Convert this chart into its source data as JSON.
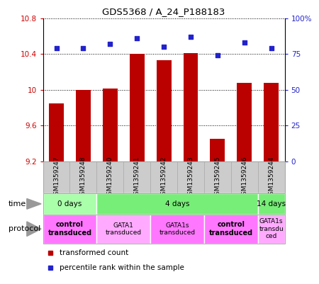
{
  "title": "GDS5368 / A_24_P188183",
  "samples": [
    "GSM1359247",
    "GSM1359248",
    "GSM1359240",
    "GSM1359241",
    "GSM1359242",
    "GSM1359243",
    "GSM1359245",
    "GSM1359246",
    "GSM1359244"
  ],
  "transformed_count": [
    9.85,
    10.0,
    10.01,
    10.4,
    10.33,
    10.41,
    9.45,
    10.08,
    10.08
  ],
  "percentile_rank": [
    79,
    79,
    82,
    86,
    80,
    87,
    74,
    83,
    79
  ],
  "ylim_left": [
    9.2,
    10.8
  ],
  "ylim_right": [
    0,
    100
  ],
  "yticks_left": [
    9.2,
    9.6,
    10.0,
    10.4,
    10.8
  ],
  "yticks_right": [
    0,
    25,
    50,
    75,
    100
  ],
  "ytick_labels_left": [
    "9.2",
    "9.6",
    "10",
    "10.4",
    "10.8"
  ],
  "ytick_labels_right": [
    "0",
    "25",
    "50",
    "75",
    "100%"
  ],
  "bar_color": "#bb0000",
  "dot_color": "#2222cc",
  "baseline": 9.2,
  "time_groups": [
    {
      "label": "0 days",
      "start": 0,
      "end": 2,
      "color": "#aaffaa"
    },
    {
      "label": "4 days",
      "start": 2,
      "end": 8,
      "color": "#77ee77"
    },
    {
      "label": "14 days",
      "start": 8,
      "end": 9,
      "color": "#77ee77"
    }
  ],
  "protocol_groups": [
    {
      "label": "control\ntransduced",
      "start": 0,
      "end": 2,
      "color": "#ff77ff",
      "bold": true
    },
    {
      "label": "GATA1\ntransduced",
      "start": 2,
      "end": 4,
      "color": "#ffaaff",
      "bold": false
    },
    {
      "label": "GATA1s\ntransduced",
      "start": 4,
      "end": 6,
      "color": "#ff77ff",
      "bold": false
    },
    {
      "label": "control\ntransduced",
      "start": 6,
      "end": 8,
      "color": "#ff77ff",
      "bold": true
    },
    {
      "label": "GATA1s\ntransdu\nced",
      "start": 8,
      "end": 9,
      "color": "#ffaaff",
      "bold": false
    }
  ],
  "left_label_color": "#cc0000",
  "right_label_color": "#2222cc",
  "sample_bg_color": "#cccccc",
  "sample_border_color": "#aaaaaa",
  "fig_width": 4.4,
  "fig_height": 3.93,
  "dpi": 100
}
